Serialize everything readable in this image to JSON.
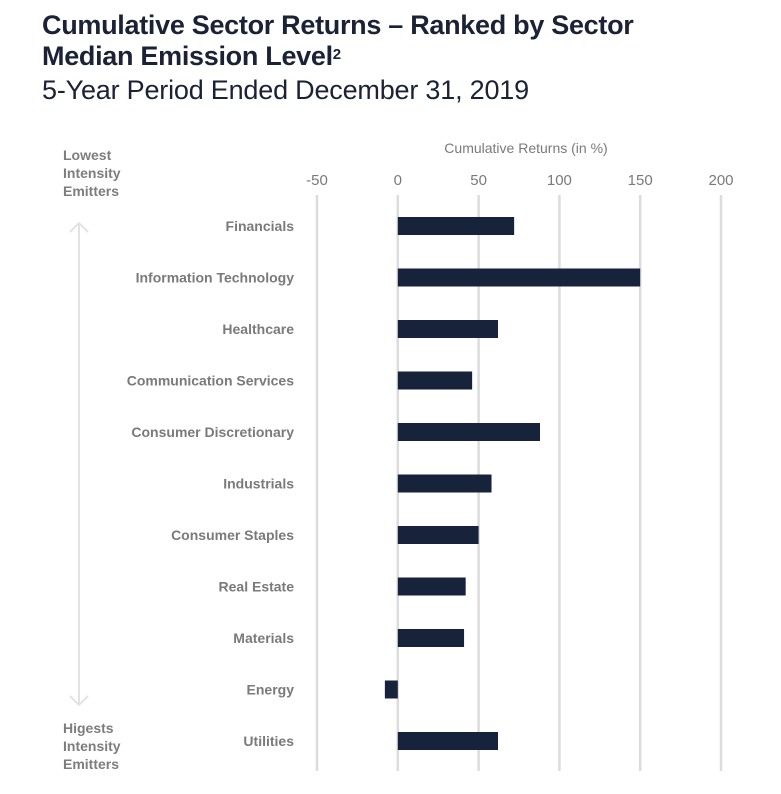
{
  "header": {
    "title_line1": "Cumulative Sector Returns – Ranked by Sector",
    "title_line2": "Median Emission Level",
    "title_superscript": "2",
    "subtitle": "5-Year Period Ended December 31, 2019"
  },
  "side_labels": {
    "top": [
      "Lowest",
      "Intensity",
      "Emitters"
    ],
    "bottom": [
      "Higests",
      "Intensity",
      "Emitters"
    ],
    "arrow_icon": "double-headed-vertical-arrow"
  },
  "colors": {
    "bar": "#17223b",
    "grid": "#dcdcdc",
    "label": "#7a7a7a",
    "title": "#1b2236"
  },
  "chart_data": {
    "type": "bar",
    "orientation": "horizontal",
    "title": "Cumulative Sector Returns – Ranked by Sector Median Emission Level",
    "subtitle": "5-Year Period Ended December 31, 2019",
    "xlabel": "Cumulative Returns (in %)",
    "ylabel": "",
    "xlim": [
      -50,
      200
    ],
    "xticks": [
      -50,
      0,
      50,
      100,
      150,
      200
    ],
    "xtick_labels": [
      "-50",
      "0",
      "50",
      "100",
      "150",
      "200"
    ],
    "grid": true,
    "legend": "none",
    "categories": [
      "Financials",
      "Information Technology",
      "Healthcare",
      "Communication Services",
      "Consumer Discretionary",
      "Industrials",
      "Consumer Staples",
      "Real Estate",
      "Materials",
      "Energy",
      "Utilities"
    ],
    "values": [
      72,
      150,
      62,
      46,
      88,
      58,
      50,
      42,
      41,
      -8,
      62
    ]
  }
}
